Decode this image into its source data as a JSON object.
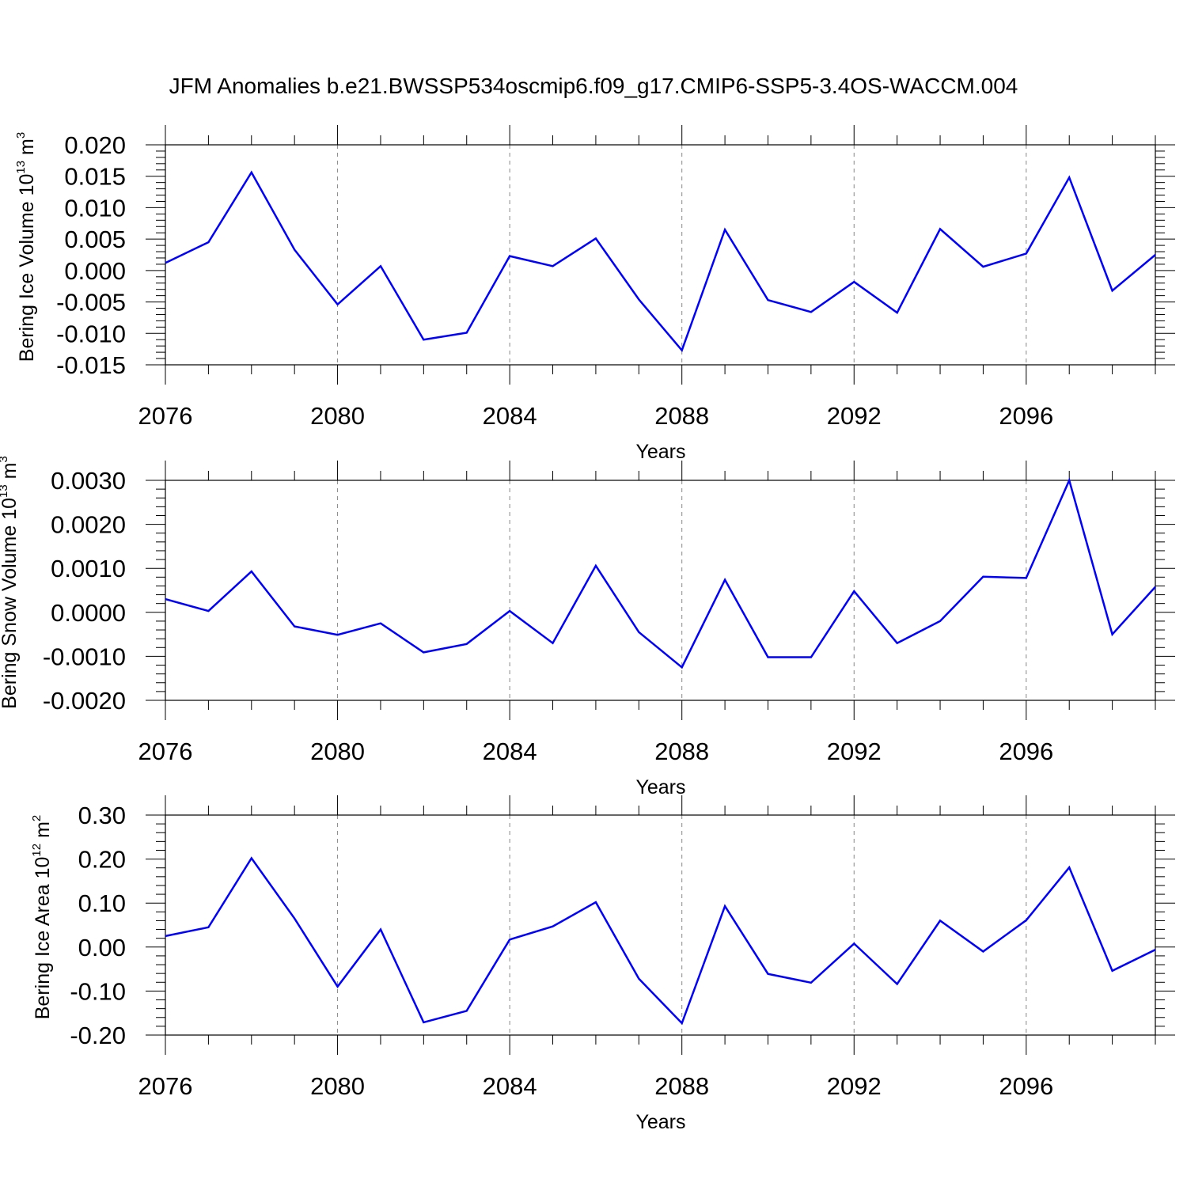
{
  "title": "JFM Anomalies b.e21.BWSSP534oscmip6.f09_g17.CMIP6-SSP5-3.4OS-WACCM.004",
  "colors": {
    "series": "#0000ff",
    "grid": "#888888",
    "axis": "#000000"
  },
  "chart_data": [
    {
      "type": "line",
      "name": "bering-ice-volume",
      "ylabel": {
        "text": "Bering Ice Volume 10",
        "exp": "13",
        "unit": " m",
        "unit_exp": "3"
      },
      "xlabel": "Years",
      "xlim": [
        2076,
        2099
      ],
      "ylim": [
        -0.015,
        0.02
      ],
      "x_ticks": [
        "2076",
        "2080",
        "2084",
        "2088",
        "2092",
        "2096"
      ],
      "y_ticks": [
        "-0.015",
        "-0.010",
        "-0.005",
        "0.000",
        "0.005",
        "0.010",
        "0.015",
        "0.020"
      ],
      "x": [
        2076,
        2077,
        2078,
        2079,
        2080,
        2081,
        2082,
        2083,
        2084,
        2085,
        2086,
        2087,
        2088,
        2089,
        2090,
        2091,
        2092,
        2093,
        2094,
        2095,
        2096,
        2097,
        2098,
        2099
      ],
      "values": [
        0.0012,
        0.0045,
        0.0156,
        0.0033,
        -0.0054,
        0.0007,
        -0.011,
        -0.0099,
        0.0023,
        0.0007,
        0.0051,
        -0.0046,
        -0.0127,
        0.0065,
        -0.0047,
        -0.0066,
        -0.0018,
        -0.0067,
        0.0066,
        0.0006,
        0.0027,
        0.0148,
        -0.0032,
        0.0025
      ]
    },
    {
      "type": "line",
      "name": "bering-snow-volume",
      "ylabel": {
        "text": "Bering Snow Volume 10",
        "exp": "13",
        "unit": " m",
        "unit_exp": "3"
      },
      "xlabel": "Years",
      "xlim": [
        2076,
        2099
      ],
      "ylim": [
        -0.002,
        0.003
      ],
      "x_ticks": [
        "2076",
        "2080",
        "2084",
        "2088",
        "2092",
        "2096"
      ],
      "y_ticks": [
        "-0.0020",
        "-0.0010",
        "0.0000",
        "0.0010",
        "0.0020",
        "0.0030"
      ],
      "x": [
        2076,
        2077,
        2078,
        2079,
        2080,
        2081,
        2082,
        2083,
        2084,
        2085,
        2086,
        2087,
        2088,
        2089,
        2090,
        2091,
        2092,
        2093,
        2094,
        2095,
        2096,
        2097,
        2098,
        2099
      ],
      "values": [
        0.0003,
        3e-05,
        0.00093,
        -0.00032,
        -0.00051,
        -0.00025,
        -0.00091,
        -0.00072,
        3e-05,
        -0.0007,
        0.00106,
        -0.00045,
        -0.00125,
        0.00074,
        -0.00102,
        -0.00102,
        0.00048,
        -0.0007,
        -0.0002,
        0.00081,
        0.00078,
        0.003,
        -0.0005,
        0.00058
      ]
    },
    {
      "type": "line",
      "name": "bering-ice-area",
      "ylabel": {
        "text": "Bering Ice Area 10",
        "exp": "12",
        "unit": " m",
        "unit_exp": "2"
      },
      "xlabel": "Years",
      "xlim": [
        2076,
        2099
      ],
      "ylim": [
        -0.2,
        0.3
      ],
      "x_ticks": [
        "2076",
        "2080",
        "2084",
        "2088",
        "2092",
        "2096"
      ],
      "y_ticks": [
        "-0.20",
        "-0.10",
        "0.00",
        "0.10",
        "0.20",
        "0.30"
      ],
      "x": [
        2076,
        2077,
        2078,
        2079,
        2080,
        2081,
        2082,
        2083,
        2084,
        2085,
        2086,
        2087,
        2088,
        2089,
        2090,
        2091,
        2092,
        2093,
        2094,
        2095,
        2096,
        2097,
        2098,
        2099
      ],
      "values": [
        0.025,
        0.045,
        0.202,
        0.065,
        -0.09,
        0.04,
        -0.171,
        -0.145,
        0.017,
        0.047,
        0.102,
        -0.072,
        -0.173,
        0.093,
        -0.061,
        -0.081,
        0.008,
        -0.084,
        0.06,
        -0.01,
        0.061,
        0.181,
        -0.054,
        -0.006
      ]
    }
  ]
}
